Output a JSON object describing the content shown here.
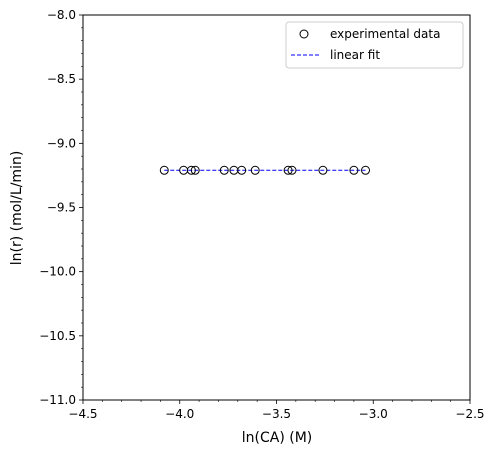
{
  "chart_data": {
    "type": "scatter",
    "title": "",
    "xlabel": "ln(CA) (M)",
    "ylabel": "ln(r) (mol/L/min)",
    "xlim": [
      -4.5,
      -2.5
    ],
    "ylim": [
      -11.0,
      -8.0
    ],
    "x_ticks": [
      -4.5,
      -4.0,
      -3.5,
      -3.0,
      -2.5
    ],
    "y_ticks": [
      -11.0,
      -10.5,
      -10.0,
      -9.5,
      -9.0,
      -8.5,
      -8.0
    ],
    "x_tick_labels": [
      "−4.5",
      "−4.0",
      "−3.5",
      "−3.0",
      "−2.5"
    ],
    "y_tick_labels": [
      "−11.0",
      "−10.5",
      "−10.0",
      "−9.5",
      "−9.0",
      "−8.5",
      "−8.0"
    ],
    "grid": false,
    "legend_position": "top-right",
    "series": [
      {
        "name": "experimental data",
        "type": "scatter",
        "marker": "open-circle",
        "color": "#000000",
        "x": [
          -4.08,
          -3.98,
          -3.94,
          -3.92,
          -3.77,
          -3.72,
          -3.68,
          -3.61,
          -3.44,
          -3.42,
          -3.26,
          -3.1,
          -3.04
        ],
        "y": [
          -9.21,
          -9.21,
          -9.21,
          -9.21,
          -9.21,
          -9.21,
          -9.21,
          -9.21,
          -9.21,
          -9.21,
          -9.21,
          -9.21,
          -9.21
        ]
      },
      {
        "name": "linear fit",
        "type": "line",
        "style": "dashed",
        "color": "#0000ff",
        "x": [
          -4.08,
          -3.04
        ],
        "y": [
          -9.21,
          -9.21
        ]
      }
    ]
  }
}
